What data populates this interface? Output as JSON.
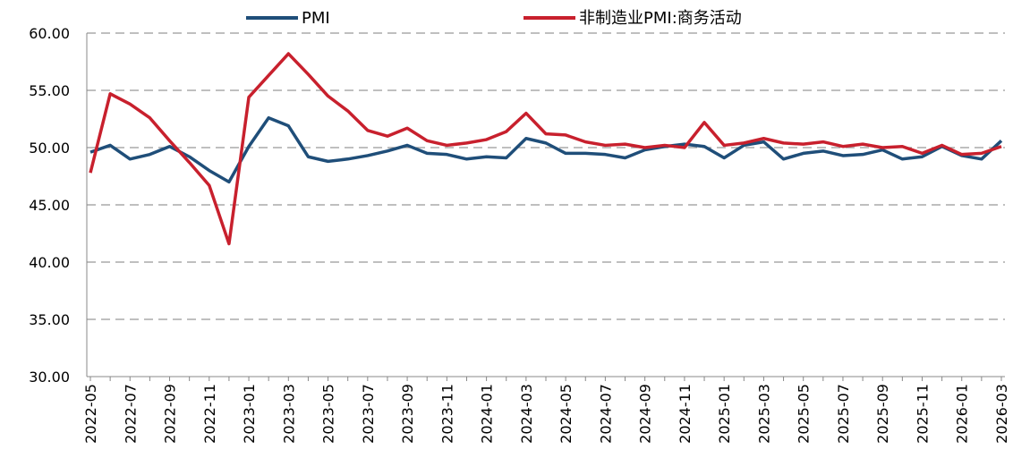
{
  "chart_data": {
    "type": "line",
    "categories": [
      "2022-05",
      null,
      "2022-07",
      null,
      "2022-09",
      null,
      "2022-11",
      null,
      "2023-01",
      null,
      "2023-03",
      null,
      "2023-05",
      null,
      "2023-07",
      null,
      "2023-09",
      null,
      "2023-11",
      null,
      "2024-01",
      null,
      "2024-03",
      null,
      "2024-05",
      null,
      "2024-07",
      null,
      "2024-09",
      null,
      "2024-11",
      null,
      "2025-01",
      null,
      "2025-03",
      null,
      "2025-05",
      null,
      "2025-07",
      null,
      "2025-09",
      null,
      "2025-11",
      null,
      "2026-01",
      null,
      "2026-03"
    ],
    "series": [
      {
        "name": "PMI",
        "color": "#1f4e79",
        "values": [
          49.6,
          50.2,
          49.0,
          49.4,
          50.1,
          49.2,
          48.0,
          47.0,
          50.1,
          52.6,
          51.9,
          49.2,
          48.8,
          49.0,
          49.3,
          49.7,
          50.2,
          49.5,
          49.4,
          49.0,
          49.2,
          49.1,
          50.8,
          50.4,
          49.5,
          49.5,
          49.4,
          49.1,
          49.8,
          50.1,
          50.3,
          50.1,
          49.1,
          50.2,
          50.5,
          49.0,
          49.5,
          49.7,
          49.3,
          49.4,
          49.8,
          49.0,
          49.2,
          50.1,
          49.3,
          49.0,
          50.6
        ]
      },
      {
        "name": "非制造业PMI:商务活动",
        "color": "#c8202d",
        "values": [
          47.8,
          54.7,
          53.8,
          52.6,
          50.6,
          48.7,
          46.7,
          41.6,
          54.4,
          56.3,
          58.2,
          56.4,
          54.5,
          53.2,
          51.5,
          51.0,
          51.7,
          50.6,
          50.2,
          50.4,
          50.7,
          51.4,
          53.0,
          51.2,
          51.1,
          50.5,
          50.2,
          50.3,
          50.0,
          50.2,
          50.0,
          52.2,
          50.2,
          50.4,
          50.8,
          50.4,
          50.3,
          50.5,
          50.1,
          50.3,
          50.0,
          50.1,
          49.5,
          50.2,
          49.4,
          49.5,
          50.1
        ]
      }
    ],
    "ylim": [
      30,
      60
    ],
    "yticks": [
      {
        "value": 30,
        "label": "30.00"
      },
      {
        "value": 35,
        "label": "35.00"
      },
      {
        "value": 40,
        "label": "40.00"
      },
      {
        "value": 45,
        "label": "45.00"
      },
      {
        "value": 50,
        "label": "50.00"
      },
      {
        "value": 55,
        "label": "55.00"
      },
      {
        "value": 60,
        "label": "60.00"
      }
    ],
    "grid": true,
    "legend": "top"
  }
}
